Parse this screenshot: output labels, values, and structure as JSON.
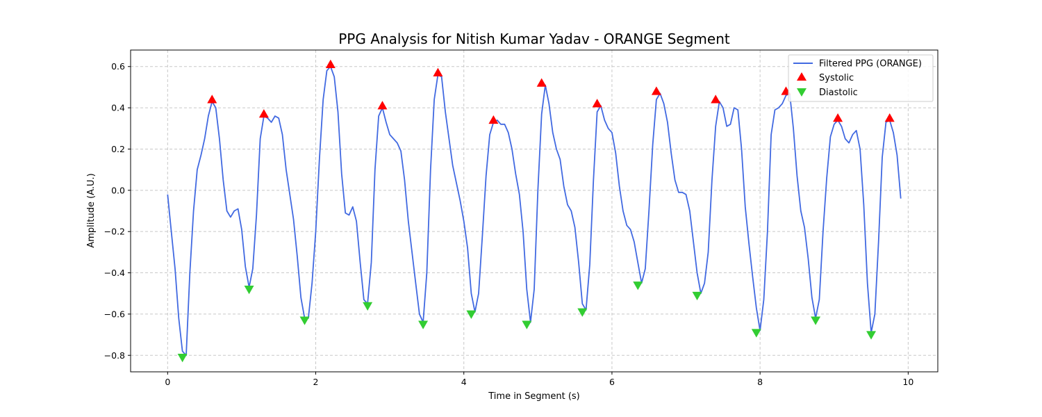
{
  "chart_data": {
    "type": "line",
    "title": "PPG Analysis for Nitish Kumar Yadav - ORANGE Segment",
    "xlabel": "Time in Segment (s)",
    "ylabel": "Amplitude (A.U.)",
    "xlim": [
      -0.5,
      10.4
    ],
    "ylim": [
      -0.88,
      0.68
    ],
    "xticks": [
      0,
      2,
      4,
      6,
      8,
      10
    ],
    "yticks": [
      -0.8,
      -0.6,
      -0.4,
      -0.2,
      0.0,
      0.2,
      0.4,
      0.6
    ],
    "xtick_labels": [
      "0",
      "2",
      "4",
      "6",
      "8",
      "10"
    ],
    "ytick_labels": [
      "−0.8",
      "−0.6",
      "−0.4",
      "−0.2",
      "0.0",
      "0.2",
      "0.4",
      "0.6"
    ],
    "grid": true,
    "legend_position": "top-right",
    "colors": {
      "line": "#4169e1",
      "systolic": "#ff0000",
      "diastolic": "#32cd32"
    },
    "series": [
      {
        "name": "Filtered PPG (ORANGE)",
        "kind": "line",
        "points": [
          [
            0,
            -0.02
          ],
          [
            0.05,
            -0.2
          ],
          [
            0.1,
            -0.38
          ],
          [
            0.15,
            -0.62
          ],
          [
            0.2,
            -0.78
          ],
          [
            0.25,
            -0.8
          ],
          [
            0.3,
            -0.4
          ],
          [
            0.35,
            -0.1
          ],
          [
            0.4,
            0.1
          ],
          [
            0.45,
            0.17
          ],
          [
            0.5,
            0.25
          ],
          [
            0.55,
            0.36
          ],
          [
            0.6,
            0.43
          ],
          [
            0.65,
            0.4
          ],
          [
            0.7,
            0.25
          ],
          [
            0.75,
            0.05
          ],
          [
            0.8,
            -0.1
          ],
          [
            0.85,
            -0.13
          ],
          [
            0.9,
            -0.1
          ],
          [
            0.95,
            -0.09
          ],
          [
            1.0,
            -0.19
          ],
          [
            1.05,
            -0.37
          ],
          [
            1.1,
            -0.47
          ],
          [
            1.15,
            -0.38
          ],
          [
            1.2,
            -0.12
          ],
          [
            1.25,
            0.25
          ],
          [
            1.3,
            0.36
          ],
          [
            1.35,
            0.35
          ],
          [
            1.4,
            0.33
          ],
          [
            1.45,
            0.36
          ],
          [
            1.5,
            0.35
          ],
          [
            1.55,
            0.27
          ],
          [
            1.6,
            0.1
          ],
          [
            1.7,
            -0.14
          ],
          [
            1.75,
            -0.32
          ],
          [
            1.8,
            -0.52
          ],
          [
            1.85,
            -0.62
          ],
          [
            1.9,
            -0.62
          ],
          [
            1.95,
            -0.45
          ],
          [
            2.0,
            -0.2
          ],
          [
            2.05,
            0.15
          ],
          [
            2.1,
            0.44
          ],
          [
            2.15,
            0.58
          ],
          [
            2.2,
            0.6
          ],
          [
            2.25,
            0.55
          ],
          [
            2.3,
            0.38
          ],
          [
            2.35,
            0.08
          ],
          [
            2.4,
            -0.11
          ],
          [
            2.45,
            -0.12
          ],
          [
            2.5,
            -0.08
          ],
          [
            2.55,
            -0.15
          ],
          [
            2.6,
            -0.35
          ],
          [
            2.65,
            -0.53
          ],
          [
            2.7,
            -0.55
          ],
          [
            2.75,
            -0.35
          ],
          [
            2.8,
            0.1
          ],
          [
            2.85,
            0.36
          ],
          [
            2.9,
            0.4
          ],
          [
            2.95,
            0.33
          ],
          [
            3.0,
            0.27
          ],
          [
            3.05,
            0.25
          ],
          [
            3.1,
            0.23
          ],
          [
            3.15,
            0.19
          ],
          [
            3.2,
            0.05
          ],
          [
            3.25,
            -0.15
          ],
          [
            3.3,
            -0.3
          ],
          [
            3.35,
            -0.45
          ],
          [
            3.4,
            -0.6
          ],
          [
            3.45,
            -0.64
          ],
          [
            3.5,
            -0.4
          ],
          [
            3.55,
            0.1
          ],
          [
            3.6,
            0.44
          ],
          [
            3.65,
            0.56
          ],
          [
            3.7,
            0.55
          ],
          [
            3.75,
            0.38
          ],
          [
            3.85,
            0.12
          ],
          [
            3.95,
            -0.05
          ],
          [
            4.0,
            -0.15
          ],
          [
            4.05,
            -0.28
          ],
          [
            4.1,
            -0.5
          ],
          [
            4.15,
            -0.59
          ],
          [
            4.2,
            -0.5
          ],
          [
            4.25,
            -0.22
          ],
          [
            4.3,
            0.07
          ],
          [
            4.35,
            0.27
          ],
          [
            4.4,
            0.33
          ],
          [
            4.45,
            0.34
          ],
          [
            4.5,
            0.32
          ],
          [
            4.55,
            0.32
          ],
          [
            4.6,
            0.28
          ],
          [
            4.65,
            0.2
          ],
          [
            4.7,
            0.08
          ],
          [
            4.75,
            -0.02
          ],
          [
            4.8,
            -0.2
          ],
          [
            4.85,
            -0.48
          ],
          [
            4.9,
            -0.64
          ],
          [
            4.95,
            -0.48
          ],
          [
            5.0,
            0.0
          ],
          [
            5.05,
            0.37
          ],
          [
            5.1,
            0.51
          ],
          [
            5.15,
            0.42
          ],
          [
            5.2,
            0.28
          ],
          [
            5.25,
            0.2
          ],
          [
            5.3,
            0.15
          ],
          [
            5.35,
            0.02
          ],
          [
            5.4,
            -0.07
          ],
          [
            5.45,
            -0.1
          ],
          [
            5.5,
            -0.18
          ],
          [
            5.55,
            -0.35
          ],
          [
            5.6,
            -0.55
          ],
          [
            5.65,
            -0.58
          ],
          [
            5.7,
            -0.36
          ],
          [
            5.75,
            0.05
          ],
          [
            5.8,
            0.38
          ],
          [
            5.85,
            0.41
          ],
          [
            5.9,
            0.34
          ],
          [
            5.95,
            0.3
          ],
          [
            6.0,
            0.28
          ],
          [
            6.05,
            0.18
          ],
          [
            6.1,
            0.02
          ],
          [
            6.15,
            -0.1
          ],
          [
            6.2,
            -0.17
          ],
          [
            6.25,
            -0.19
          ],
          [
            6.3,
            -0.25
          ],
          [
            6.35,
            -0.35
          ],
          [
            6.4,
            -0.45
          ],
          [
            6.45,
            -0.38
          ],
          [
            6.5,
            -0.1
          ],
          [
            6.55,
            0.22
          ],
          [
            6.6,
            0.44
          ],
          [
            6.65,
            0.47
          ],
          [
            6.7,
            0.42
          ],
          [
            6.75,
            0.33
          ],
          [
            6.8,
            0.18
          ],
          [
            6.85,
            0.05
          ],
          [
            6.9,
            -0.01
          ],
          [
            6.95,
            -0.01
          ],
          [
            7.0,
            -0.02
          ],
          [
            7.05,
            -0.1
          ],
          [
            7.1,
            -0.25
          ],
          [
            7.15,
            -0.4
          ],
          [
            7.2,
            -0.5
          ],
          [
            7.25,
            -0.45
          ],
          [
            7.3,
            -0.3
          ],
          [
            7.35,
            0.05
          ],
          [
            7.4,
            0.31
          ],
          [
            7.45,
            0.43
          ],
          [
            7.5,
            0.4
          ],
          [
            7.55,
            0.31
          ],
          [
            7.6,
            0.32
          ],
          [
            7.65,
            0.4
          ],
          [
            7.7,
            0.39
          ],
          [
            7.75,
            0.2
          ],
          [
            7.8,
            -0.08
          ],
          [
            7.85,
            -0.26
          ],
          [
            7.9,
            -0.42
          ],
          [
            7.95,
            -0.57
          ],
          [
            8.0,
            -0.68
          ],
          [
            8.05,
            -0.53
          ],
          [
            8.1,
            -0.2
          ],
          [
            8.15,
            0.27
          ],
          [
            8.2,
            0.39
          ],
          [
            8.25,
            0.4
          ],
          [
            8.3,
            0.42
          ],
          [
            8.35,
            0.46
          ],
          [
            8.4,
            0.47
          ],
          [
            8.45,
            0.3
          ],
          [
            8.5,
            0.07
          ],
          [
            8.55,
            -0.1
          ],
          [
            8.6,
            -0.18
          ],
          [
            8.65,
            -0.33
          ],
          [
            8.7,
            -0.52
          ],
          [
            8.75,
            -0.62
          ],
          [
            8.8,
            -0.53
          ],
          [
            8.85,
            -0.2
          ],
          [
            8.9,
            0.06
          ],
          [
            8.95,
            0.26
          ],
          [
            9.0,
            0.32
          ],
          [
            9.05,
            0.34
          ],
          [
            9.1,
            0.31
          ],
          [
            9.15,
            0.25
          ],
          [
            9.2,
            0.23
          ],
          [
            9.25,
            0.27
          ],
          [
            9.3,
            0.29
          ],
          [
            9.35,
            0.2
          ],
          [
            9.4,
            -0.07
          ],
          [
            9.45,
            -0.45
          ],
          [
            9.5,
            -0.69
          ],
          [
            9.55,
            -0.6
          ],
          [
            9.6,
            -0.25
          ],
          [
            9.65,
            0.16
          ],
          [
            9.7,
            0.33
          ],
          [
            9.75,
            0.34
          ],
          [
            9.8,
            0.28
          ],
          [
            9.85,
            0.17
          ],
          [
            9.9,
            -0.04
          ]
        ]
      },
      {
        "name": "Systolic",
        "kind": "marker-up",
        "points": [
          [
            0.6,
            0.44
          ],
          [
            1.3,
            0.37
          ],
          [
            2.2,
            0.61
          ],
          [
            2.9,
            0.41
          ],
          [
            3.65,
            0.57
          ],
          [
            4.4,
            0.34
          ],
          [
            5.05,
            0.52
          ],
          [
            5.8,
            0.42
          ],
          [
            6.6,
            0.48
          ],
          [
            7.4,
            0.44
          ],
          [
            8.35,
            0.48
          ],
          [
            9.05,
            0.35
          ],
          [
            9.75,
            0.35
          ]
        ]
      },
      {
        "name": "Diastolic",
        "kind": "marker-down",
        "points": [
          [
            0.2,
            -0.81
          ],
          [
            1.1,
            -0.48
          ],
          [
            1.85,
            -0.63
          ],
          [
            2.7,
            -0.56
          ],
          [
            3.45,
            -0.65
          ],
          [
            4.1,
            -0.6
          ],
          [
            4.85,
            -0.65
          ],
          [
            5.6,
            -0.59
          ],
          [
            6.35,
            -0.46
          ],
          [
            7.15,
            -0.51
          ],
          [
            7.95,
            -0.69
          ],
          [
            8.75,
            -0.63
          ],
          [
            9.5,
            -0.7
          ]
        ]
      }
    ]
  }
}
